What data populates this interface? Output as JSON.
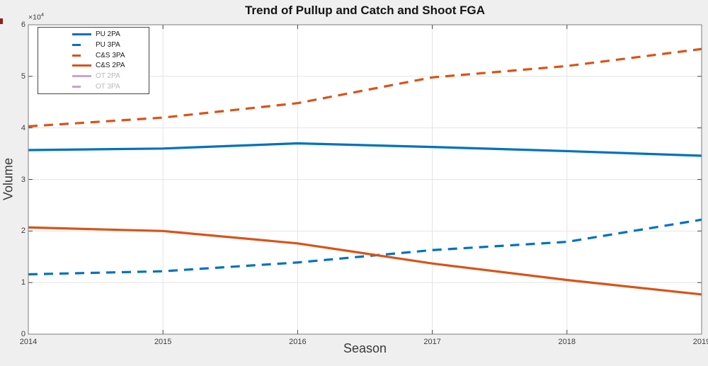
{
  "figure": {
    "background_color": "#efefef",
    "corner_mark_color": "#8e1f1f"
  },
  "chart_data": {
    "type": "line",
    "title": "Trend of Pullup and Catch and Shoot FGA",
    "xlabel": "Season",
    "ylabel": "Volume",
    "y_axis_exponent": {
      "mantissa": "×10",
      "exponent": "4"
    },
    "x": [
      2014,
      2015,
      2016,
      2017,
      2018,
      2019
    ],
    "x_tick_labels": [
      "2014",
      "2015",
      "2016",
      "2017",
      "2018",
      "2019"
    ],
    "y_tick_values": [
      0,
      10000,
      20000,
      30000,
      40000,
      50000,
      60000
    ],
    "y_tick_labels": [
      "0",
      "1",
      "2",
      "3",
      "4",
      "5",
      "6"
    ],
    "xlim": [
      2014,
      2019
    ],
    "ylim": [
      0,
      60000
    ],
    "grid": true,
    "legend_position": "top-left",
    "legend_text_color": "#1c1c1c",
    "legend_dimmed_text_color": "#b9b9b9",
    "plot_bg_color": "#ffffff",
    "axis_box_color": "#7d7d7d",
    "grid_color": "#e4e4e4",
    "tick_color": "#444444",
    "series": [
      {
        "name": "PU 2PA",
        "color": "#0072BD",
        "line_style": "solid",
        "visible": true,
        "values": [
          35700,
          36000,
          37000,
          36300,
          35500,
          34600
        ]
      },
      {
        "name": "PU 3PA",
        "color": "#0072BD",
        "line_style": "dashed",
        "visible": true,
        "values": [
          11600,
          12200,
          13900,
          16300,
          17900,
          22200
        ]
      },
      {
        "name": "C&S 3PA",
        "color": "#D95319",
        "line_style": "dashed",
        "visible": true,
        "values": [
          40300,
          42000,
          44800,
          49800,
          52000,
          55300
        ]
      },
      {
        "name": "C&S 2PA",
        "color": "#D95319",
        "line_style": "solid",
        "visible": true,
        "values": [
          20700,
          20000,
          17600,
          13700,
          10500,
          7700
        ]
      },
      {
        "name": "OT 2PA",
        "color": "#C5A5D0",
        "line_style": "solid",
        "visible": false,
        "values": null
      },
      {
        "name": "OT 3PA",
        "color": "#C5A5D0",
        "line_style": "dashed",
        "visible": false,
        "values": null
      }
    ]
  }
}
